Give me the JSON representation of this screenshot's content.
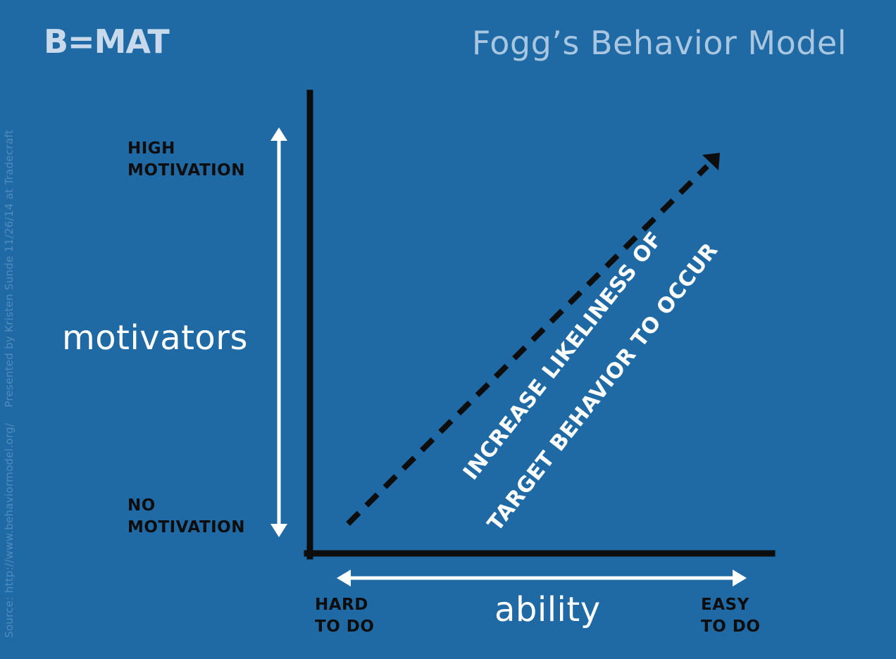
{
  "header": {
    "brand": "B=MAT",
    "title": "Fogg’s Behavior Model"
  },
  "source_note": {
    "source": "Source: http://www.behaviormodel.org/",
    "presented": "Presented by Kristen Sunde 11/26/14 at Tradecraft"
  },
  "y_axis": {
    "label": "motivators",
    "high_line1": "HIGH",
    "high_line2": "MOTIVATION",
    "low_line1": "NO",
    "low_line2": "MOTIVATION"
  },
  "x_axis": {
    "label": "ability",
    "left_line1": "HARD",
    "left_line2": "TO DO",
    "right_line1": "EASY",
    "right_line2": "TO DO"
  },
  "diagonal": {
    "line1": "INCREASE LIKELINESS OF",
    "line2": "TARGET BEHAVIOR TO OCCUR"
  },
  "colors": {
    "background": "#1f6aa5",
    "axis": "#0d0d0d",
    "arrows": "#ffffff"
  }
}
